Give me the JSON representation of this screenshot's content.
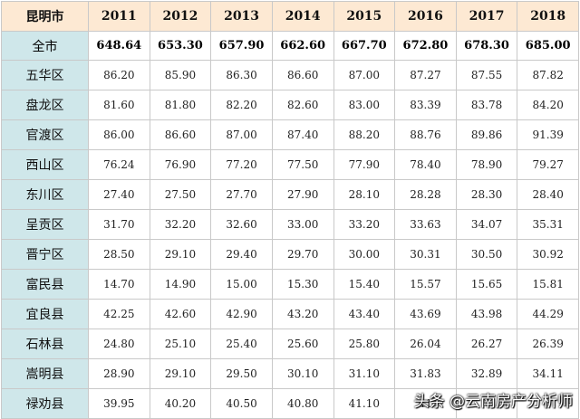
{
  "table": {
    "corner": "昆明市",
    "years": [
      "2011",
      "2012",
      "2013",
      "2014",
      "2015",
      "2016",
      "2017",
      "2018"
    ],
    "total": {
      "name": "全市",
      "values": [
        "648.64",
        "653.30",
        "657.90",
        "662.60",
        "667.70",
        "672.80",
        "678.30",
        "685.00"
      ]
    },
    "rows": [
      {
        "name": "五华区",
        "values": [
          "86.20",
          "85.90",
          "86.30",
          "86.60",
          "87.00",
          "87.27",
          "87.55",
          "87.82"
        ]
      },
      {
        "name": "盘龙区",
        "values": [
          "81.60",
          "81.80",
          "82.20",
          "82.60",
          "83.00",
          "83.39",
          "83.78",
          "84.20"
        ]
      },
      {
        "name": "官渡区",
        "values": [
          "86.00",
          "86.60",
          "87.00",
          "87.40",
          "88.20",
          "88.76",
          "89.86",
          "91.39"
        ]
      },
      {
        "name": "西山区",
        "values": [
          "76.24",
          "76.90",
          "77.20",
          "77.50",
          "77.90",
          "78.40",
          "78.90",
          "79.27"
        ]
      },
      {
        "name": "东川区",
        "values": [
          "27.40",
          "27.50",
          "27.70",
          "27.90",
          "28.10",
          "28.28",
          "28.30",
          "28.40"
        ]
      },
      {
        "name": "呈贡区",
        "values": [
          "31.70",
          "32.20",
          "32.60",
          "33.00",
          "33.20",
          "33.63",
          "34.07",
          "35.31"
        ]
      },
      {
        "name": "晋宁区",
        "values": [
          "28.50",
          "29.10",
          "29.40",
          "29.70",
          "30.00",
          "30.31",
          "30.50",
          "30.92"
        ]
      },
      {
        "name": "富民县",
        "values": [
          "14.70",
          "14.90",
          "15.00",
          "15.30",
          "15.40",
          "15.57",
          "15.65",
          "15.81"
        ]
      },
      {
        "name": "宜良县",
        "values": [
          "42.25",
          "42.60",
          "42.90",
          "43.20",
          "43.40",
          "43.69",
          "43.98",
          "44.29"
        ]
      },
      {
        "name": "石林县",
        "values": [
          "24.80",
          "25.10",
          "25.40",
          "25.60",
          "25.80",
          "26.04",
          "26.27",
          "26.39"
        ]
      },
      {
        "name": "嵩明县",
        "values": [
          "28.90",
          "29.10",
          "29.50",
          "30.10",
          "31.10",
          "31.83",
          "32.89",
          "34.11"
        ]
      },
      {
        "name": "禄劝县",
        "values": [
          "39.95",
          "40.20",
          "40.50",
          "40.80",
          "41.10",
          "41",
          "",
          ""
        ]
      }
    ]
  },
  "watermark": {
    "icon": "头条",
    "text": "头条 @云南房产分析师"
  }
}
